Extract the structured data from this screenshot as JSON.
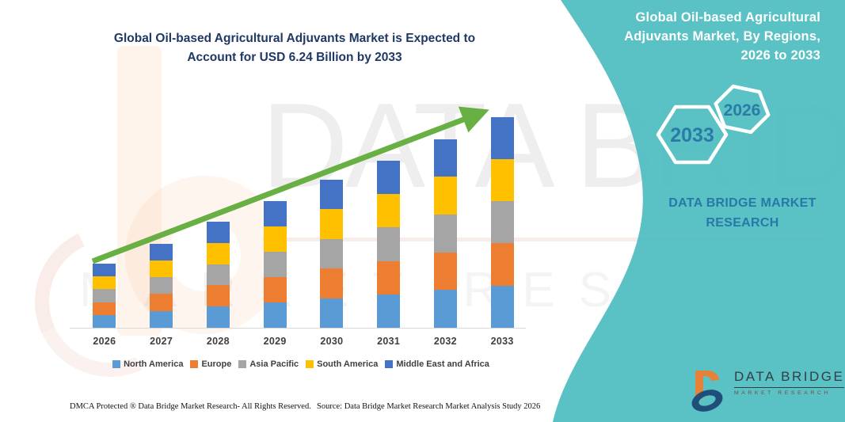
{
  "header_left": {
    "lines": [
      "Global Oil-based Agricultural Adjuvants Market is Expected to",
      "Account for USD 6.24 Billion by 2033"
    ]
  },
  "header_right": {
    "lines": [
      "Global Oil-based Agricultural",
      "Adjuvants Market, By Regions,",
      "2026 to 2033"
    ]
  },
  "hexagons": [
    {
      "label": "2033"
    },
    {
      "label": "2026"
    }
  ],
  "brand_caption": {
    "lines": [
      "DATA BRIDGE MARKET",
      "RESEARCH"
    ]
  },
  "logo": {
    "name": "DATA BRIDGE",
    "sub": "MARKET RESEARCH"
  },
  "watermark": {
    "line1": "DATA BRIDGE",
    "line2": "MARKET RESEARCH"
  },
  "footer": {
    "left": "DMCA Protected ® Data Bridge Market Research-  All Rights Reserved.",
    "right": "Source: Data Bridge Market Research  Market Analysis Study 2026"
  },
  "colors": {
    "teal_panel": "#5BC1C5",
    "title_navy": "#1f3864",
    "hex_label_blue": "#2b7ba6",
    "caption_blue": "#2878a8",
    "axis_gray": "#d9d9d9",
    "label_gray": "#3f3f3f"
  },
  "chart_data": {
    "type": "bar",
    "stacked": true,
    "title": "Global Oil-based Agricultural Adjuvants Market is Expected to Account for USD 6.24 Billion by 2033",
    "unit": "USD Billion",
    "categories": [
      "2026",
      "2027",
      "2028",
      "2029",
      "2030",
      "2031",
      "2032",
      "2033"
    ],
    "series": [
      {
        "name": "North America",
        "color": "#5B9BD5",
        "values": [
          0.38,
          0.5,
          0.63,
          0.75,
          0.88,
          0.99,
          1.12,
          1.25
        ]
      },
      {
        "name": "Europe",
        "color": "#ED7D31",
        "values": [
          0.38,
          0.5,
          0.63,
          0.75,
          0.88,
          0.99,
          1.12,
          1.25
        ]
      },
      {
        "name": "Asia Pacific",
        "color": "#A5A5A5",
        "values": [
          0.38,
          0.5,
          0.63,
          0.75,
          0.88,
          0.99,
          1.12,
          1.25
        ]
      },
      {
        "name": "South America",
        "color": "#FFC000",
        "values": [
          0.38,
          0.5,
          0.63,
          0.75,
          0.88,
          0.99,
          1.12,
          1.25
        ]
      },
      {
        "name": "Middle East and Africa",
        "color": "#4472C4",
        "values": [
          0.38,
          0.5,
          0.63,
          0.75,
          0.88,
          0.99,
          1.12,
          1.25
        ]
      }
    ],
    "totals": [
      1.9,
      2.5,
      3.15,
      3.75,
      4.4,
      4.95,
      5.6,
      6.25
    ],
    "final_value_label": "USD 6.24 Billion by 2033",
    "trend_arrow": {
      "direction": "up",
      "color": "#68B043"
    },
    "axes": {
      "y_axis_visible": false,
      "x_labels": [
        "2026",
        "2027",
        "2028",
        "2029",
        "2030",
        "2031",
        "2032",
        "2033"
      ]
    },
    "legend_position": "bottom"
  }
}
